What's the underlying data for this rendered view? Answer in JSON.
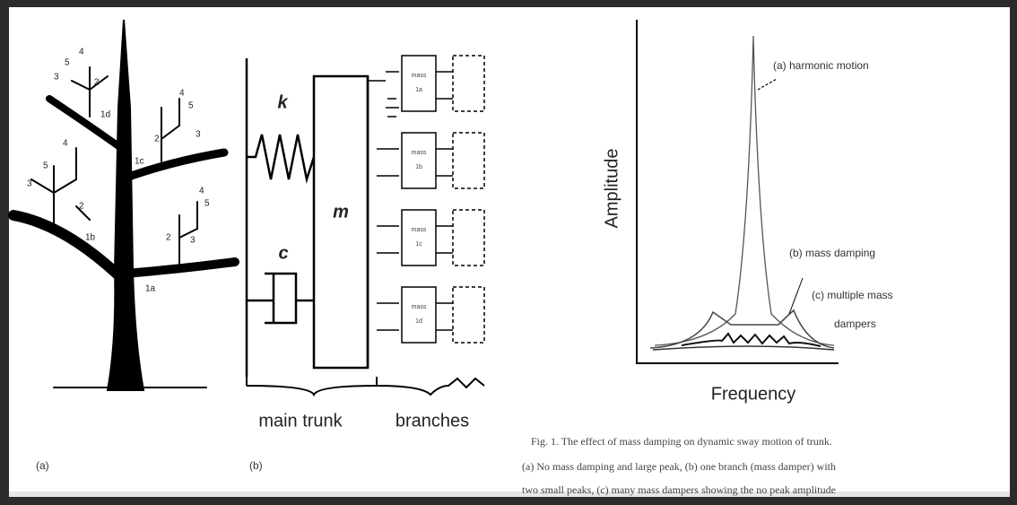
{
  "figure": {
    "tree": {
      "labels": [
        "4",
        "5",
        "3",
        "2",
        "1d",
        "4",
        "5",
        "2",
        "3",
        "1c",
        "4",
        "5",
        "3",
        "2",
        "1b",
        "4",
        "5",
        "2",
        "3",
        "1a"
      ],
      "caption": "(a)"
    },
    "model": {
      "spring": "k",
      "mass": "m",
      "damper": "c",
      "branch_boxes": [
        {
          "title": "mass",
          "id": "1a"
        },
        {
          "title": "mass",
          "id": "1b"
        },
        {
          "title": "mass",
          "id": "1c"
        },
        {
          "title": "mass",
          "id": "1d"
        }
      ],
      "trunk_label": "main trunk",
      "branches_label": "branches",
      "caption": "(b)"
    },
    "plot": {
      "y_label": "Amplitude",
      "x_label": "Frequency",
      "annotations": [
        "(a) harmonic motion",
        "(b) mass damping",
        "(c) multiple mass",
        "dampers"
      ]
    },
    "caption_lines": [
      "Fig. 1.    The effect of mass damping on dynamic sway motion of trunk.",
      "(a) No mass damping and large peak, (b) one branch (mass damper) with",
      "two small peaks, (c) many mass dampers showing the no peak amplitude"
    ]
  }
}
